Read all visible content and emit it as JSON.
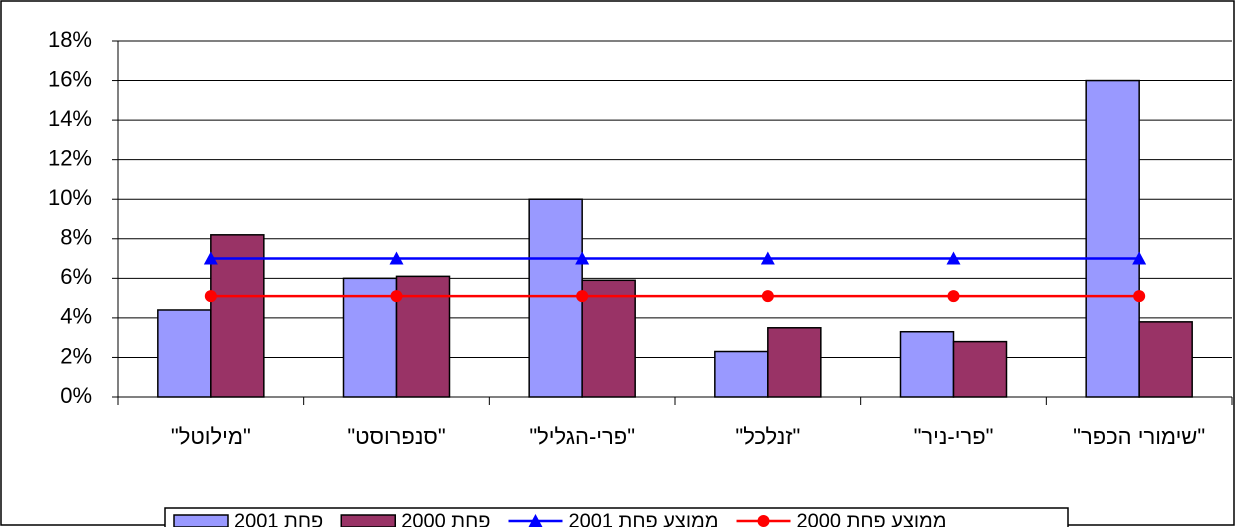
{
  "chart_data": {
    "type": "bar",
    "categories": [
      "\"מילוטל\"",
      "\"סנפרוסט\"",
      "\"פרי-הגליל\"",
      "\"זנלכל\"",
      "\"פרי-ניר\"",
      "\"שימורי הכפר\""
    ],
    "series": [
      {
        "name": "פחת 2001",
        "type": "bar",
        "color": "#9999ff",
        "values": [
          4.4,
          6.0,
          10.0,
          2.3,
          3.3,
          16.0
        ]
      },
      {
        "name": "פחת 2000",
        "type": "bar",
        "color": "#993366",
        "values": [
          8.2,
          6.1,
          5.9,
          3.5,
          2.8,
          3.8
        ]
      },
      {
        "name": "ממוצע פחת 2001",
        "type": "line",
        "marker": "triangle",
        "color": "#0000ff",
        "values": [
          7.0,
          7.0,
          7.0,
          7.0,
          7.0,
          7.0
        ]
      },
      {
        "name": "ממוצע פחת 2000",
        "type": "line",
        "marker": "circle",
        "color": "#ff0000",
        "values": [
          5.1,
          5.1,
          5.1,
          5.1,
          5.1,
          5.1
        ]
      }
    ],
    "ylim": [
      0,
      18
    ],
    "yticks": [
      {
        "value": 0,
        "label": "0%"
      },
      {
        "value": 2,
        "label": "2%"
      },
      {
        "value": 4,
        "label": "4%"
      },
      {
        "value": 6,
        "label": "6%"
      },
      {
        "value": 8,
        "label": "8%"
      },
      {
        "value": 10,
        "label": "10%"
      },
      {
        "value": 12,
        "label": "12%"
      },
      {
        "value": 14,
        "label": "14%"
      },
      {
        "value": 16,
        "label": "16%"
      },
      {
        "value": 18,
        "label": "18%"
      }
    ],
    "grid": true,
    "legend": "bottom"
  }
}
